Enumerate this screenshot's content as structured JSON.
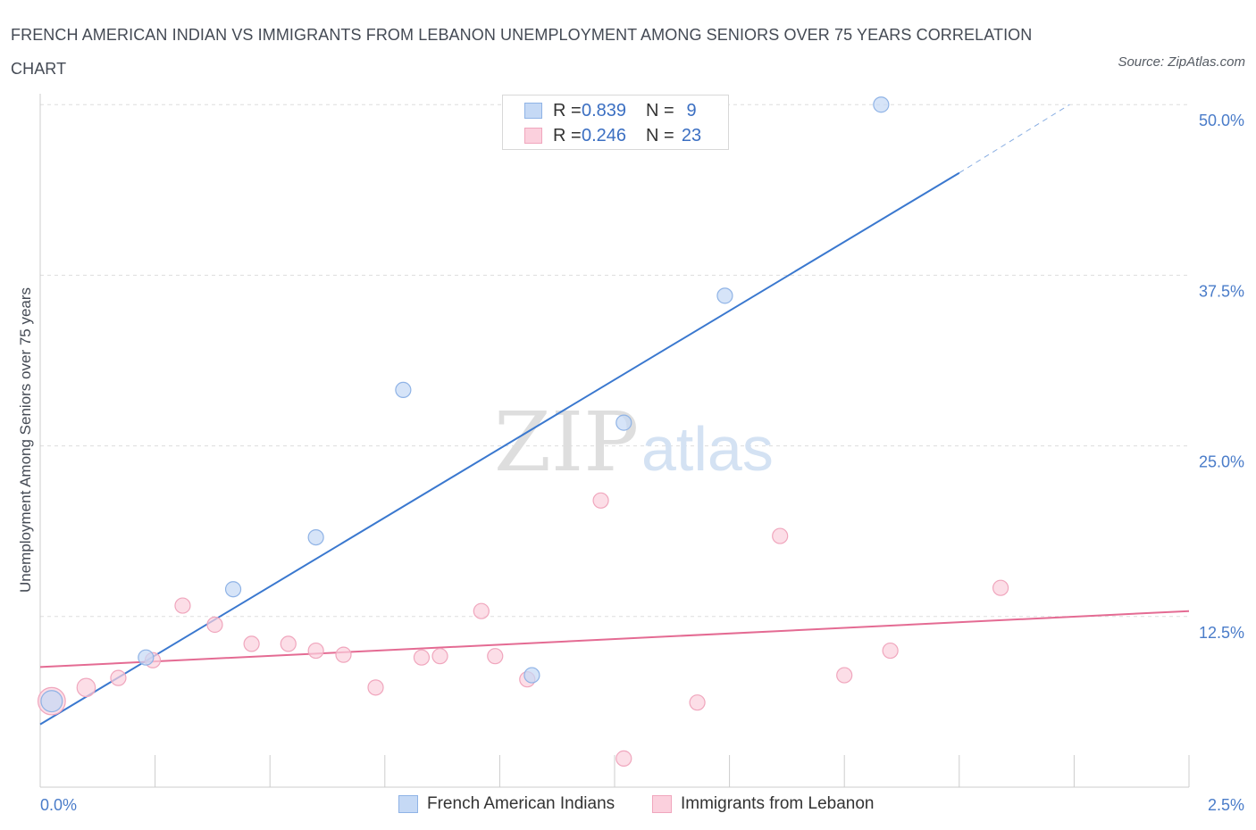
{
  "title": "FRENCH AMERICAN INDIAN VS IMMIGRANTS FROM LEBANON UNEMPLOYMENT AMONG SENIORS OVER 75 YEARS CORRELATION CHART",
  "source": "Source: ZipAtlas.com",
  "watermark": {
    "zip": "ZIP",
    "atlas": "atlas"
  },
  "colors": {
    "blue_fill": "#c5d9f5",
    "blue_stroke": "#8fb3e6",
    "blue_line": "#3a78cf",
    "pink_fill": "#fbd0dd",
    "pink_stroke": "#f0a6bd",
    "pink_line": "#e46b93",
    "grid": "#dddddd",
    "tick_text": "#4a7cc9"
  },
  "legend": {
    "rows": [
      {
        "r_label": "R =",
        "r_value": "0.839",
        "n_label": "N =",
        "n_value": "9",
        "series": "blue"
      },
      {
        "r_label": "R =",
        "r_value": "0.246",
        "n_label": "N =",
        "n_value": "23",
        "series": "pink"
      }
    ]
  },
  "chart_data": {
    "type": "scatter",
    "title": "FRENCH AMERICAN INDIAN VS IMMIGRANTS FROM LEBANON UNEMPLOYMENT AMONG SENIORS OVER 75 YEARS CORRELATION CHART",
    "xlabel": "",
    "ylabel": "Unemployment Among Seniors over 75 years",
    "xlim": [
      0,
      2.5
    ],
    "ylim": [
      0,
      50.8
    ],
    "x_ticks": [
      {
        "value": 0,
        "label": "0.0%"
      },
      {
        "value": 2.5,
        "label": "2.5%"
      }
    ],
    "y_ticks": [
      {
        "value": 12.5,
        "label": "12.5%"
      },
      {
        "value": 25,
        "label": "25.0%"
      },
      {
        "value": 37.5,
        "label": "37.5%"
      },
      {
        "value": 50,
        "label": "50.0%"
      }
    ],
    "grid": true,
    "legend_position": "bottom-center",
    "series": [
      {
        "name": "French American Indians",
        "color": "blue",
        "points": [
          {
            "x": 0.025,
            "y": 6.3,
            "size": 1.4
          },
          {
            "x": 0.23,
            "y": 9.5,
            "size": 1
          },
          {
            "x": 0.42,
            "y": 14.5,
            "size": 1
          },
          {
            "x": 0.6,
            "y": 18.3,
            "size": 1
          },
          {
            "x": 0.79,
            "y": 29.1,
            "size": 1
          },
          {
            "x": 1.07,
            "y": 8.2,
            "size": 1
          },
          {
            "x": 1.27,
            "y": 26.7,
            "size": 1
          },
          {
            "x": 1.49,
            "y": 36.0,
            "size": 1
          },
          {
            "x": 1.83,
            "y": 50.0,
            "size": 1
          }
        ],
        "trend": {
          "x0": 0,
          "y0": 4.6,
          "x1": 2.0,
          "y1": 45.0,
          "dashed_to_x": 2.24,
          "dashed_to_y": 50.0
        }
      },
      {
        "name": "Immigrants from Lebanon",
        "color": "pink",
        "points": [
          {
            "x": 0.025,
            "y": 6.3,
            "size": 1.8
          },
          {
            "x": 0.1,
            "y": 7.3,
            "size": 1.2
          },
          {
            "x": 0.17,
            "y": 8.0,
            "size": 1
          },
          {
            "x": 0.245,
            "y": 9.3,
            "size": 1
          },
          {
            "x": 0.31,
            "y": 13.3,
            "size": 1
          },
          {
            "x": 0.38,
            "y": 11.9,
            "size": 1
          },
          {
            "x": 0.46,
            "y": 10.5,
            "size": 1
          },
          {
            "x": 0.54,
            "y": 10.5,
            "size": 1
          },
          {
            "x": 0.6,
            "y": 10.0,
            "size": 1
          },
          {
            "x": 0.66,
            "y": 9.7,
            "size": 1
          },
          {
            "x": 0.73,
            "y": 7.3,
            "size": 1
          },
          {
            "x": 0.83,
            "y": 9.5,
            "size": 1
          },
          {
            "x": 0.87,
            "y": 9.6,
            "size": 1
          },
          {
            "x": 0.96,
            "y": 12.9,
            "size": 1
          },
          {
            "x": 0.99,
            "y": 9.6,
            "size": 1
          },
          {
            "x": 1.06,
            "y": 7.9,
            "size": 1
          },
          {
            "x": 1.22,
            "y": 21.0,
            "size": 1
          },
          {
            "x": 1.27,
            "y": 2.1,
            "size": 1
          },
          {
            "x": 1.43,
            "y": 6.2,
            "size": 1
          },
          {
            "x": 1.61,
            "y": 18.4,
            "size": 1
          },
          {
            "x": 1.75,
            "y": 8.2,
            "size": 1
          },
          {
            "x": 1.85,
            "y": 10.0,
            "size": 1
          },
          {
            "x": 2.09,
            "y": 14.6,
            "size": 1
          }
        ],
        "trend": {
          "x0": 0,
          "y0": 8.8,
          "x1": 2.5,
          "y1": 12.9
        }
      }
    ]
  }
}
